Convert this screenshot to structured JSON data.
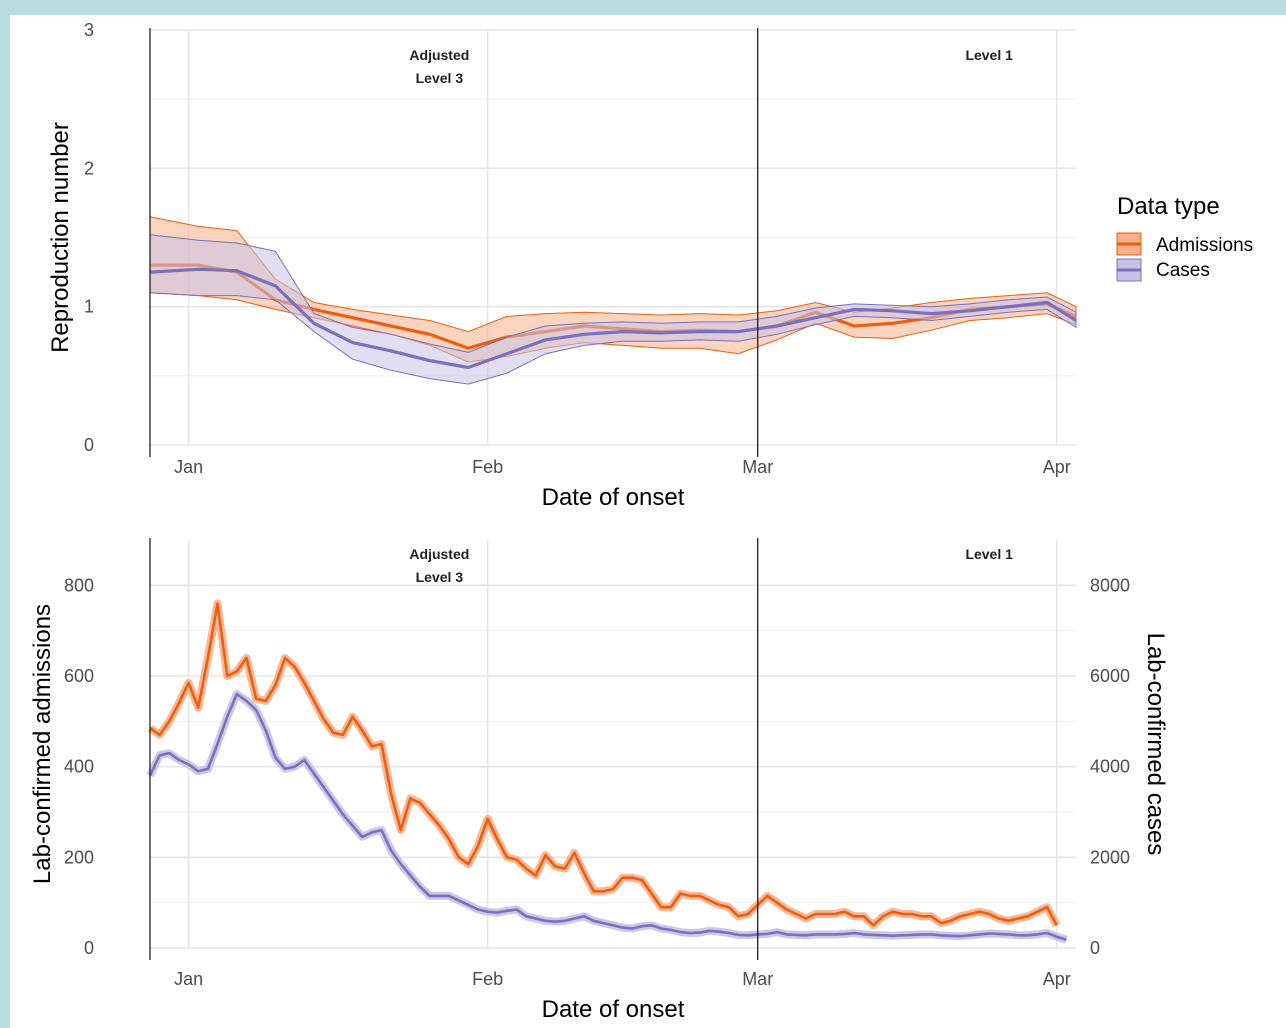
{
  "colors": {
    "admissions": "#ee5e10",
    "cases": "#7b6fbf",
    "admissions_fill": "#f6b08a",
    "cases_fill": "#c9c2e6",
    "overlap_fill": "#cfa4a6"
  },
  "legend": {
    "title": "Data type",
    "items": [
      "Admissions",
      "Cases"
    ]
  },
  "chart_data": [
    {
      "type": "line",
      "title": "",
      "xlabel": "Date of onset",
      "ylabel": "Reproduction number",
      "xlim": [
        "2021-12-28",
        "2022-04-03"
      ],
      "ylim": [
        0,
        3
      ],
      "x_ticks": [
        {
          "x": "2022-01-01",
          "label": "Jan"
        },
        {
          "x": "2022-02-01",
          "label": "Feb"
        },
        {
          "x": "2022-03-01",
          "label": "Mar"
        },
        {
          "x": "2022-04-01",
          "label": "Apr"
        }
      ],
      "y_ticks": [
        0,
        1,
        2,
        3
      ],
      "vlines": [
        "2021-12-28",
        "2022-03-01"
      ],
      "annotations": [
        {
          "x": "2022-01-27",
          "lines": [
            "Adjusted",
            "Level 3"
          ]
        },
        {
          "x": "2022-03-25",
          "lines": [
            "Level 1"
          ]
        }
      ],
      "series": [
        {
          "name": "Admissions",
          "x": [
            "2021-12-28",
            "2022-01-02",
            "2022-01-06",
            "2022-01-10",
            "2022-01-14",
            "2022-01-18",
            "2022-01-22",
            "2022-01-26",
            "2022-01-30",
            "2022-02-03",
            "2022-02-07",
            "2022-02-11",
            "2022-02-15",
            "2022-02-19",
            "2022-02-23",
            "2022-02-27",
            "2022-03-03",
            "2022-03-07",
            "2022-03-11",
            "2022-03-15",
            "2022-03-19",
            "2022-03-23",
            "2022-03-27",
            "2022-03-31",
            "2022-04-03"
          ],
          "y": [
            1.3,
            1.3,
            1.25,
            1.05,
            0.98,
            0.92,
            0.86,
            0.8,
            0.7,
            0.78,
            0.82,
            0.86,
            0.84,
            0.82,
            0.83,
            0.82,
            0.86,
            0.96,
            0.86,
            0.88,
            0.92,
            0.98,
            1.0,
            1.02,
            0.93
          ],
          "lower": [
            1.1,
            1.08,
            1.05,
            0.98,
            0.92,
            0.86,
            0.8,
            0.72,
            0.6,
            0.64,
            0.7,
            0.74,
            0.72,
            0.7,
            0.7,
            0.66,
            0.76,
            0.88,
            0.78,
            0.77,
            0.83,
            0.9,
            0.92,
            0.95,
            0.87
          ],
          "upper": [
            1.65,
            1.58,
            1.55,
            1.2,
            1.03,
            0.98,
            0.94,
            0.9,
            0.82,
            0.93,
            0.95,
            0.96,
            0.95,
            0.94,
            0.95,
            0.94,
            0.97,
            1.03,
            0.96,
            0.99,
            1.03,
            1.06,
            1.08,
            1.1,
            1.0
          ]
        },
        {
          "name": "Cases",
          "x": [
            "2021-12-28",
            "2022-01-02",
            "2022-01-06",
            "2022-01-10",
            "2022-01-14",
            "2022-01-18",
            "2022-01-22",
            "2022-01-26",
            "2022-01-30",
            "2022-02-03",
            "2022-02-07",
            "2022-02-11",
            "2022-02-15",
            "2022-02-19",
            "2022-02-23",
            "2022-02-27",
            "2022-03-03",
            "2022-03-07",
            "2022-03-11",
            "2022-03-15",
            "2022-03-19",
            "2022-03-23",
            "2022-03-27",
            "2022-03-31",
            "2022-04-03"
          ],
          "y": [
            1.25,
            1.27,
            1.26,
            1.15,
            0.88,
            0.74,
            0.68,
            0.61,
            0.56,
            0.66,
            0.76,
            0.8,
            0.82,
            0.81,
            0.82,
            0.82,
            0.86,
            0.92,
            0.98,
            0.97,
            0.95,
            0.97,
            1.0,
            1.03,
            0.9
          ],
          "lower": [
            1.1,
            1.08,
            1.08,
            1.05,
            0.82,
            0.62,
            0.54,
            0.48,
            0.44,
            0.52,
            0.66,
            0.72,
            0.75,
            0.75,
            0.76,
            0.75,
            0.8,
            0.87,
            0.93,
            0.92,
            0.9,
            0.93,
            0.96,
            0.98,
            0.85
          ],
          "upper": [
            1.52,
            1.48,
            1.46,
            1.4,
            0.95,
            0.85,
            0.8,
            0.73,
            0.67,
            0.78,
            0.86,
            0.88,
            0.89,
            0.88,
            0.89,
            0.89,
            0.93,
            0.99,
            1.02,
            1.01,
            1.0,
            1.02,
            1.05,
            1.07,
            0.96
          ]
        }
      ]
    },
    {
      "type": "line",
      "title": "",
      "xlabel": "Date of onset",
      "ylabel": "Lab-confirmed admissions",
      "y2label": "Lab-confirmed cases",
      "xlim": [
        "2021-12-28",
        "2022-04-03"
      ],
      "ylim": [
        0,
        900
      ],
      "y2lim": [
        0,
        9000
      ],
      "x_ticks": [
        {
          "x": "2022-01-01",
          "label": "Jan"
        },
        {
          "x": "2022-02-01",
          "label": "Feb"
        },
        {
          "x": "2022-03-01",
          "label": "Mar"
        },
        {
          "x": "2022-04-01",
          "label": "Apr"
        }
      ],
      "y_ticks": [
        0,
        200,
        400,
        600,
        800
      ],
      "y2_ticks": [
        0,
        2000,
        4000,
        6000,
        8000
      ],
      "vlines": [
        "2021-12-28",
        "2022-03-01"
      ],
      "annotations": [
        {
          "x": "2022-01-27",
          "lines": [
            "Adjusted",
            "Level 3"
          ]
        },
        {
          "x": "2022-03-25",
          "lines": [
            "Level 1"
          ]
        }
      ],
      "series": [
        {
          "name": "Admissions",
          "axis": "left",
          "x": [
            "2021-12-28",
            "2021-12-29",
            "2021-12-30",
            "2021-12-31",
            "2022-01-01",
            "2022-01-02",
            "2022-01-03",
            "2022-01-04",
            "2022-01-05",
            "2022-01-06",
            "2022-01-07",
            "2022-01-08",
            "2022-01-09",
            "2022-01-10",
            "2022-01-11",
            "2022-01-12",
            "2022-01-13",
            "2022-01-14",
            "2022-01-15",
            "2022-01-16",
            "2022-01-17",
            "2022-01-18",
            "2022-01-19",
            "2022-01-20",
            "2022-01-21",
            "2022-01-22",
            "2022-01-23",
            "2022-01-24",
            "2022-01-25",
            "2022-01-26",
            "2022-01-27",
            "2022-01-28",
            "2022-01-29",
            "2022-01-30",
            "2022-01-31",
            "2022-02-01",
            "2022-02-02",
            "2022-02-03",
            "2022-02-04",
            "2022-02-05",
            "2022-02-06",
            "2022-02-07",
            "2022-02-08",
            "2022-02-09",
            "2022-02-10",
            "2022-02-11",
            "2022-02-12",
            "2022-02-13",
            "2022-02-14",
            "2022-02-15",
            "2022-02-16",
            "2022-02-17",
            "2022-02-18",
            "2022-02-19",
            "2022-02-20",
            "2022-02-21",
            "2022-02-22",
            "2022-02-23",
            "2022-02-24",
            "2022-02-25",
            "2022-02-26",
            "2022-02-27",
            "2022-02-28",
            "2022-03-01",
            "2022-03-02",
            "2022-03-03",
            "2022-03-04",
            "2022-03-05",
            "2022-03-06",
            "2022-03-07",
            "2022-03-08",
            "2022-03-09",
            "2022-03-10",
            "2022-03-11",
            "2022-03-12",
            "2022-03-13",
            "2022-03-14",
            "2022-03-15",
            "2022-03-16",
            "2022-03-17",
            "2022-03-18",
            "2022-03-19",
            "2022-03-20",
            "2022-03-21",
            "2022-03-22",
            "2022-03-23",
            "2022-03-24",
            "2022-03-25",
            "2022-03-26",
            "2022-03-27",
            "2022-03-28",
            "2022-03-29",
            "2022-03-30",
            "2022-03-31",
            "2022-04-01"
          ],
          "y": [
            485,
            470,
            500,
            540,
            585,
            530,
            640,
            760,
            600,
            610,
            640,
            550,
            545,
            580,
            640,
            620,
            585,
            545,
            505,
            475,
            470,
            510,
            480,
            445,
            450,
            340,
            260,
            330,
            320,
            295,
            270,
            240,
            200,
            185,
            225,
            285,
            240,
            200,
            195,
            175,
            160,
            205,
            180,
            175,
            210,
            165,
            125,
            125,
            130,
            155,
            155,
            150,
            120,
            90,
            90,
            120,
            115,
            115,
            105,
            95,
            90,
            70,
            75,
            95,
            115,
            100,
            85,
            75,
            65,
            75,
            75,
            75,
            80,
            70,
            70,
            50,
            70,
            80,
            75,
            75,
            70,
            70,
            55,
            60,
            70,
            75,
            80,
            75,
            65,
            60,
            65,
            70,
            80,
            90,
            50
          ]
        },
        {
          "name": "Cases",
          "axis": "right",
          "x": [
            "2021-12-28",
            "2021-12-29",
            "2021-12-30",
            "2021-12-31",
            "2022-01-01",
            "2022-01-02",
            "2022-01-03",
            "2022-01-04",
            "2022-01-05",
            "2022-01-06",
            "2022-01-07",
            "2022-01-08",
            "2022-01-09",
            "2022-01-10",
            "2022-01-11",
            "2022-01-12",
            "2022-01-13",
            "2022-01-14",
            "2022-01-15",
            "2022-01-16",
            "2022-01-17",
            "2022-01-18",
            "2022-01-19",
            "2022-01-20",
            "2022-01-21",
            "2022-01-22",
            "2022-01-23",
            "2022-01-24",
            "2022-01-25",
            "2022-01-26",
            "2022-01-27",
            "2022-01-28",
            "2022-01-29",
            "2022-01-30",
            "2022-01-31",
            "2022-02-01",
            "2022-02-02",
            "2022-02-03",
            "2022-02-04",
            "2022-02-05",
            "2022-02-06",
            "2022-02-07",
            "2022-02-08",
            "2022-02-09",
            "2022-02-10",
            "2022-02-11",
            "2022-02-12",
            "2022-02-13",
            "2022-02-14",
            "2022-02-15",
            "2022-02-16",
            "2022-02-17",
            "2022-02-18",
            "2022-02-19",
            "2022-02-20",
            "2022-02-21",
            "2022-02-22",
            "2022-02-23",
            "2022-02-24",
            "2022-02-25",
            "2022-02-26",
            "2022-02-27",
            "2022-02-28",
            "2022-03-01",
            "2022-03-02",
            "2022-03-03",
            "2022-03-04",
            "2022-03-05",
            "2022-03-06",
            "2022-03-07",
            "2022-03-08",
            "2022-03-09",
            "2022-03-10",
            "2022-03-11",
            "2022-03-12",
            "2022-03-13",
            "2022-03-14",
            "2022-03-15",
            "2022-03-16",
            "2022-03-17",
            "2022-03-18",
            "2022-03-19",
            "2022-03-20",
            "2022-03-21",
            "2022-03-22",
            "2022-03-23",
            "2022-03-24",
            "2022-03-25",
            "2022-03-26",
            "2022-03-27",
            "2022-03-28",
            "2022-03-29",
            "2022-03-30",
            "2022-03-31",
            "2022-04-01",
            "2022-04-02"
          ],
          "y": [
            3800,
            4250,
            4300,
            4150,
            4050,
            3900,
            3950,
            4500,
            5100,
            5600,
            5450,
            5250,
            4800,
            4200,
            3950,
            4000,
            4150,
            3850,
            3550,
            3250,
            2950,
            2700,
            2450,
            2550,
            2600,
            2150,
            1850,
            1600,
            1350,
            1150,
            1150,
            1150,
            1050,
            950,
            850,
            800,
            780,
            820,
            850,
            700,
            650,
            600,
            580,
            600,
            650,
            700,
            600,
            550,
            500,
            450,
            430,
            480,
            500,
            430,
            400,
            350,
            330,
            340,
            380,
            360,
            330,
            290,
            280,
            300,
            310,
            350,
            300,
            290,
            280,
            300,
            300,
            300,
            310,
            330,
            300,
            290,
            280,
            270,
            280,
            290,
            300,
            300,
            280,
            270,
            260,
            280,
            300,
            320,
            310,
            300,
            280,
            280,
            300,
            330,
            250,
            180
          ]
        }
      ]
    }
  ]
}
